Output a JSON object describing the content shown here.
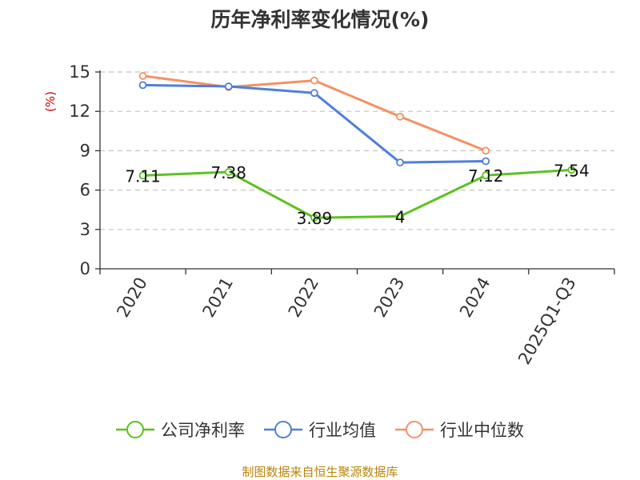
{
  "chart_data": {
    "type": "line",
    "title": "历年净利率变化情况(%)",
    "ylabel": "(%)",
    "categories": [
      "2020",
      "2021",
      "2022",
      "2023",
      "2024",
      "2025Q1-Q3"
    ],
    "ylim": [
      0,
      15
    ],
    "yticks": [
      0,
      3,
      6,
      9,
      12,
      15
    ],
    "grid": true,
    "legend_position": "bottom",
    "series": [
      {
        "name": "公司净利率",
        "color": "#5cc21f",
        "values": [
          7.11,
          7.38,
          3.89,
          4,
          7.12,
          7.54
        ],
        "labels": [
          "7.11",
          "7.38",
          "3.89",
          "4",
          "7.12",
          "7.54"
        ]
      },
      {
        "name": "行业均值",
        "color": "#4f7fdc",
        "values": [
          14.0,
          13.9,
          13.4,
          8.1,
          8.2,
          null
        ]
      },
      {
        "name": "行业中位数",
        "color": "#f59163",
        "values": [
          14.7,
          13.85,
          14.35,
          11.6,
          9.0,
          null
        ]
      }
    ]
  },
  "source": "制图数据来自恒生聚源数据库"
}
